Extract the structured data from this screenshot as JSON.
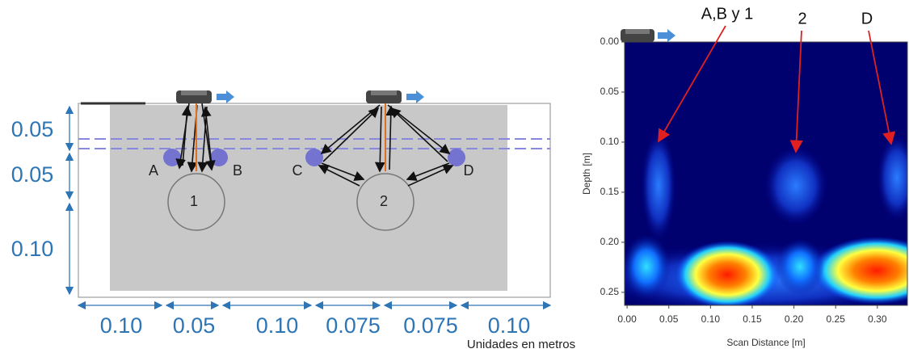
{
  "left_diagram": {
    "depth_labels": [
      "0.05",
      "0.05",
      "0.10"
    ],
    "width_labels": [
      "0.10",
      "0.05",
      "0.10",
      "0.075",
      "0.075",
      "0.10"
    ],
    "point_labels": [
      "A",
      "B",
      "C",
      "D"
    ],
    "target_labels": [
      "1",
      "2"
    ],
    "units_note": "Unidades en metros"
  },
  "radargram": {
    "annotations": [
      "A,B y 1",
      "2",
      "D"
    ],
    "x_label": "Scan Distance [m]",
    "y_label": "Depth [m]",
    "xlim": [
      -0.003,
      0.336
    ],
    "ylim": [
      0,
      0.263
    ],
    "xticks": [
      {
        "value": 0,
        "label": "0.00"
      },
      {
        "value": 0.05,
        "label": "0.05"
      },
      {
        "value": 0.1,
        "label": "0.10"
      },
      {
        "value": 0.15,
        "label": "0.15"
      },
      {
        "value": 0.2,
        "label": "0.20"
      },
      {
        "value": 0.25,
        "label": "0.25"
      },
      {
        "value": 0.3,
        "label": "0.30"
      }
    ],
    "yticks": [
      {
        "value": 0,
        "label": "0.00"
      },
      {
        "value": 0.05,
        "label": "0.05"
      },
      {
        "value": 0.1,
        "label": "0.10"
      },
      {
        "value": 0.15,
        "label": "0.15"
      },
      {
        "value": 0.2,
        "label": "0.20"
      },
      {
        "value": 0.25,
        "label": "0.25"
      }
    ]
  }
}
